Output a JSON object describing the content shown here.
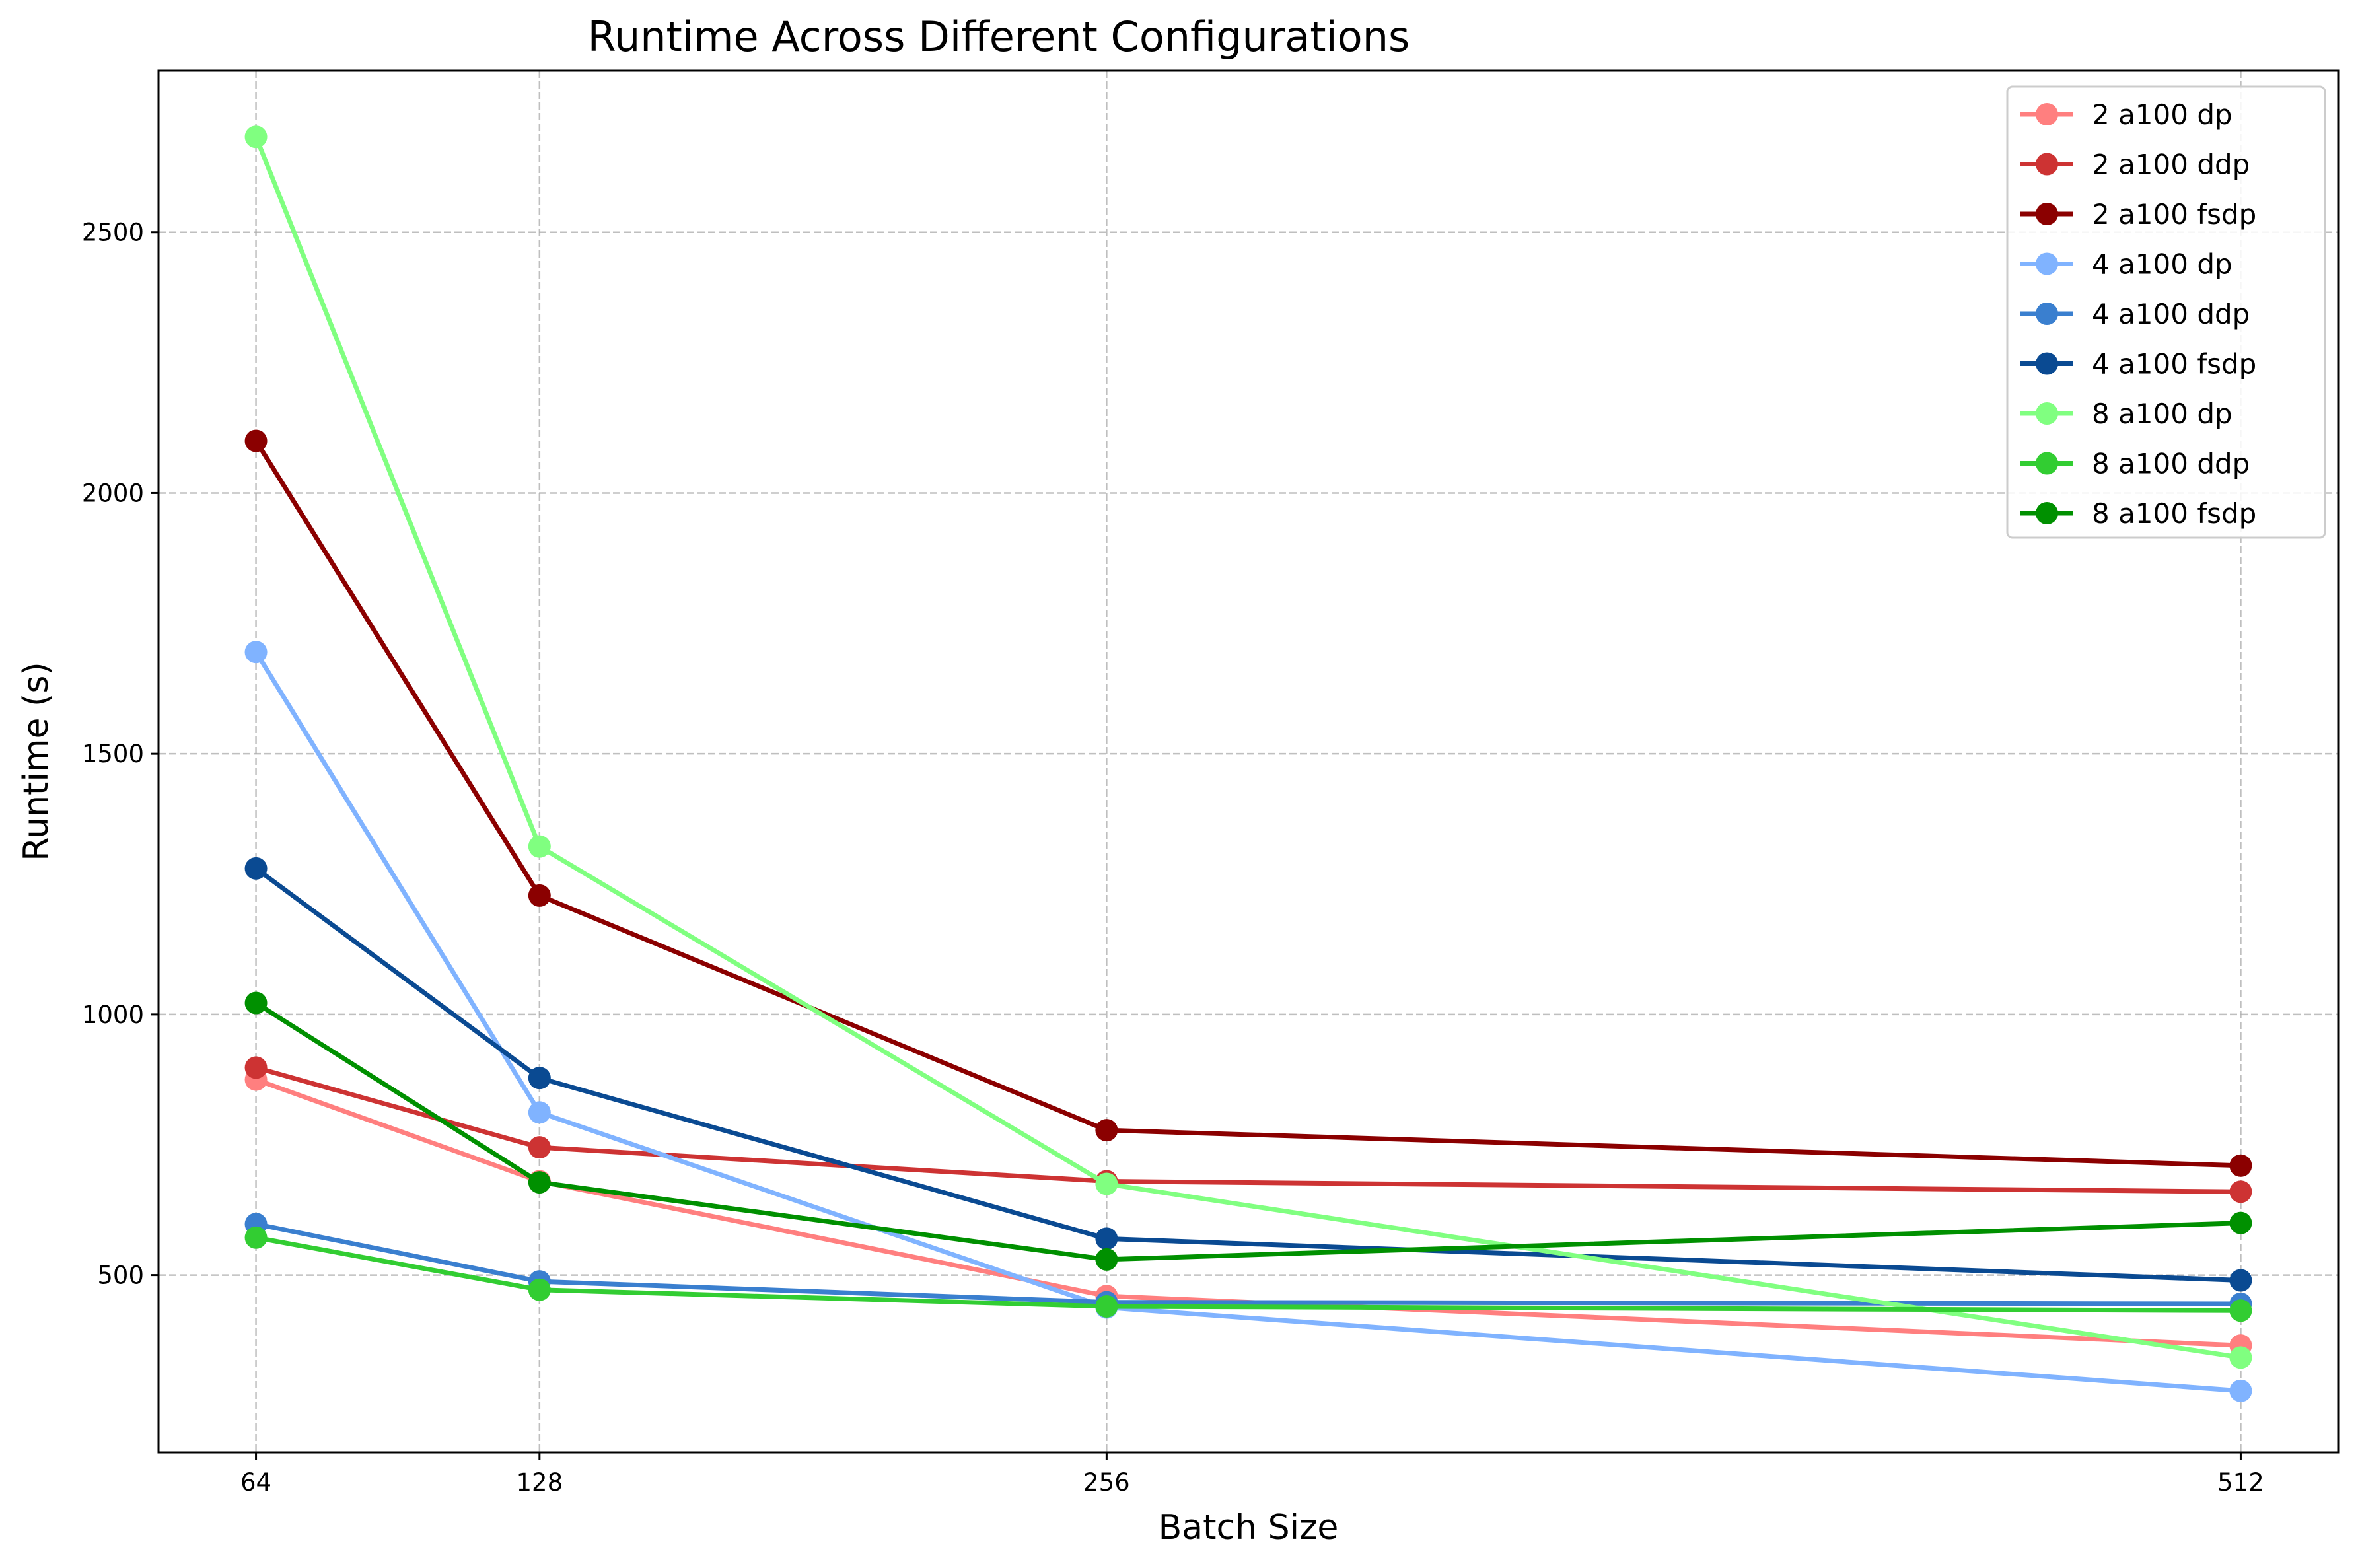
{
  "chart_data": {
    "type": "line",
    "title": "Runtime Across Different Configurations",
    "xlabel": "Batch Size",
    "ylabel": "Runtime (s)",
    "x": [
      64,
      128,
      256,
      512
    ],
    "x_tick_labels": [
      "64",
      "128",
      "256",
      "512"
    ],
    "y_ticks": [
      500,
      1000,
      1500,
      2000,
      2500
    ],
    "ylim": [
      160,
      2810
    ],
    "xlim": [
      42,
      534
    ],
    "grid": true,
    "legend_position": "top-right",
    "series": [
      {
        "name": "2 a100 dp",
        "color": "#ff7f7f",
        "values": [
          875,
          680,
          460,
          365
        ]
      },
      {
        "name": "2 a100 ddp",
        "color": "#cd3333",
        "values": [
          898,
          745,
          680,
          660
        ]
      },
      {
        "name": "2 a100 fsdp",
        "color": "#8b0000",
        "values": [
          2100,
          1228,
          778,
          710
        ]
      },
      {
        "name": "4 a100 dp",
        "color": "#80b3ff",
        "values": [
          1695,
          812,
          438,
          278
        ]
      },
      {
        "name": "4 a100 ddp",
        "color": "#3a7fcf",
        "values": [
          598,
          488,
          448,
          445
        ]
      },
      {
        "name": "4 a100 fsdp",
        "color": "#0a4a92",
        "values": [
          1280,
          878,
          570,
          490
        ]
      },
      {
        "name": "8 a100 dp",
        "color": "#80ff80",
        "values": [
          2683,
          1322,
          675,
          342
        ]
      },
      {
        "name": "8 a100 ddp",
        "color": "#32cd32",
        "values": [
          572,
          472,
          440,
          432
        ]
      },
      {
        "name": "8 a100 fsdp",
        "color": "#009000",
        "values": [
          1022,
          678,
          530,
          600
        ]
      }
    ]
  }
}
